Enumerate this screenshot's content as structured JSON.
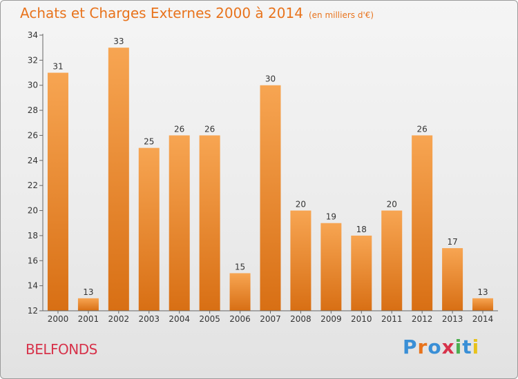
{
  "header": {
    "title": "Achats et Charges Externes 2000 à 2014",
    "subtitle": "(en milliers d'€)"
  },
  "footer": {
    "commune": "BELFONDS",
    "logo_text": "Proxiti",
    "logo_colors": [
      "#3a8fd6",
      "#e8731c",
      "#3a8fd6",
      "#d7324a",
      "#4caf50",
      "#3a8fd6",
      "#e8c21c"
    ]
  },
  "colors": {
    "bar_light": "#f7a552",
    "bar_dark": "#d86f14",
    "axis": "#666666",
    "grid_tick": "#666666",
    "title": "#e8731c",
    "commune": "#d7324a"
  },
  "chart_data": {
    "type": "bar",
    "title": "Achats et Charges Externes 2000 à 2014",
    "subtitle": "(en milliers d'€)",
    "categories": [
      "2000",
      "2001",
      "2002",
      "2003",
      "2004",
      "2005",
      "2006",
      "2007",
      "2008",
      "2009",
      "2010",
      "2011",
      "2012",
      "2013",
      "2014"
    ],
    "values": [
      31,
      13,
      33,
      25,
      26,
      26,
      15,
      30,
      20,
      19,
      18,
      20,
      26,
      17,
      13
    ],
    "ylim": [
      12,
      34
    ],
    "yticks": [
      12,
      14,
      16,
      18,
      20,
      22,
      24,
      26,
      28,
      30,
      32,
      34
    ],
    "xlabel": "",
    "ylabel": "",
    "grid": false,
    "data_labels": true
  }
}
